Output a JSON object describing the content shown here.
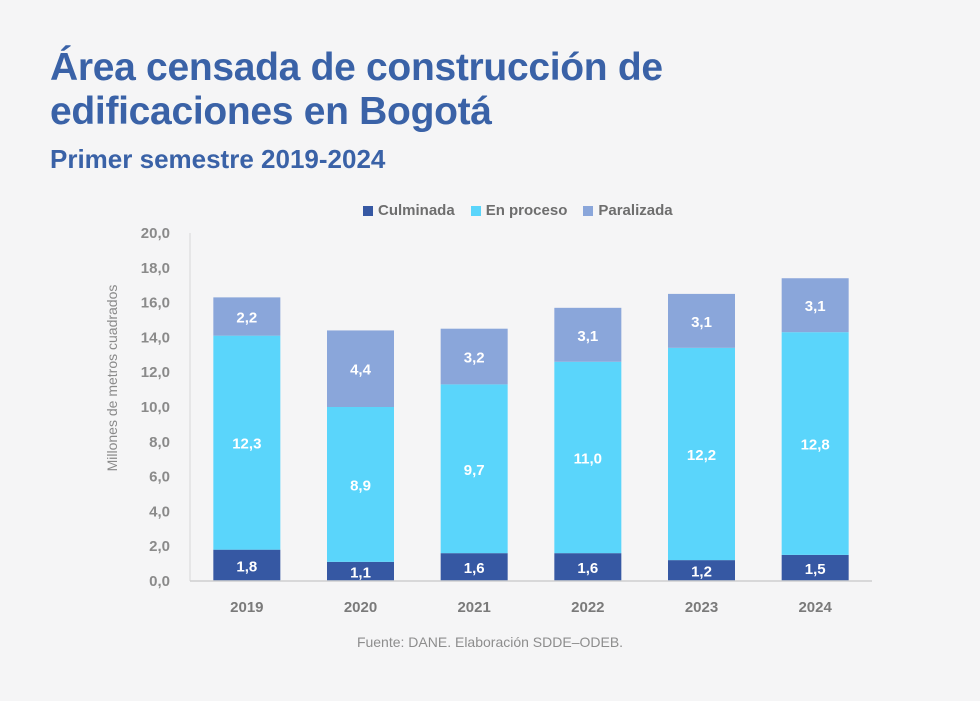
{
  "header": {
    "title_line1": "Área censada de construcción de",
    "title_line2": "edificaciones en Bogotá",
    "subtitle": "Primer semestre 2019-2024"
  },
  "footer": {
    "source": "Fuente: DANE. Elaboración SDDE–ODEB."
  },
  "colors": {
    "title": "#3a62a7",
    "culminada": "#3658a3",
    "en_proceso": "#5ad5fb",
    "paralizada": "#8aa6da"
  },
  "chart_data": {
    "type": "bar",
    "stacked": true,
    "title": "Área censada de construcción de edificaciones en Bogotá",
    "subtitle": "Primer semestre 2019-2024",
    "xlabel": "",
    "ylabel": "Millones de metros cuadrados",
    "ylim": [
      0,
      20
    ],
    "yticks": [
      "0,0",
      "2,0",
      "4,0",
      "6,0",
      "8,0",
      "10,0",
      "12,0",
      "14,0",
      "16,0",
      "18,0",
      "20,0"
    ],
    "ytick_values": [
      0,
      2,
      4,
      6,
      8,
      10,
      12,
      14,
      16,
      18,
      20
    ],
    "grid": false,
    "legend_position": "top-center",
    "categories": [
      "2019",
      "2020",
      "2021",
      "2022",
      "2023",
      "2024"
    ],
    "series": [
      {
        "name": "Culminada",
        "color": "#3658a3",
        "values": [
          1.8,
          1.1,
          1.6,
          1.6,
          1.2,
          1.5
        ],
        "labels": [
          "1,8",
          "1,1",
          "1,6",
          "1,6",
          "1,2",
          "1,5"
        ]
      },
      {
        "name": "En proceso",
        "color": "#5ad5fb",
        "values": [
          12.3,
          8.9,
          9.7,
          11.0,
          12.2,
          12.8
        ],
        "labels": [
          "12,3",
          "8,9",
          "9,7",
          "11,0",
          "12,2",
          "12,8"
        ]
      },
      {
        "name": "Paralizada",
        "color": "#8aa6da",
        "values": [
          2.2,
          4.4,
          3.2,
          3.1,
          3.1,
          3.1
        ],
        "labels": [
          "2,2",
          "4,4",
          "3,2",
          "3,1",
          "3,1",
          "3,1"
        ]
      }
    ]
  }
}
